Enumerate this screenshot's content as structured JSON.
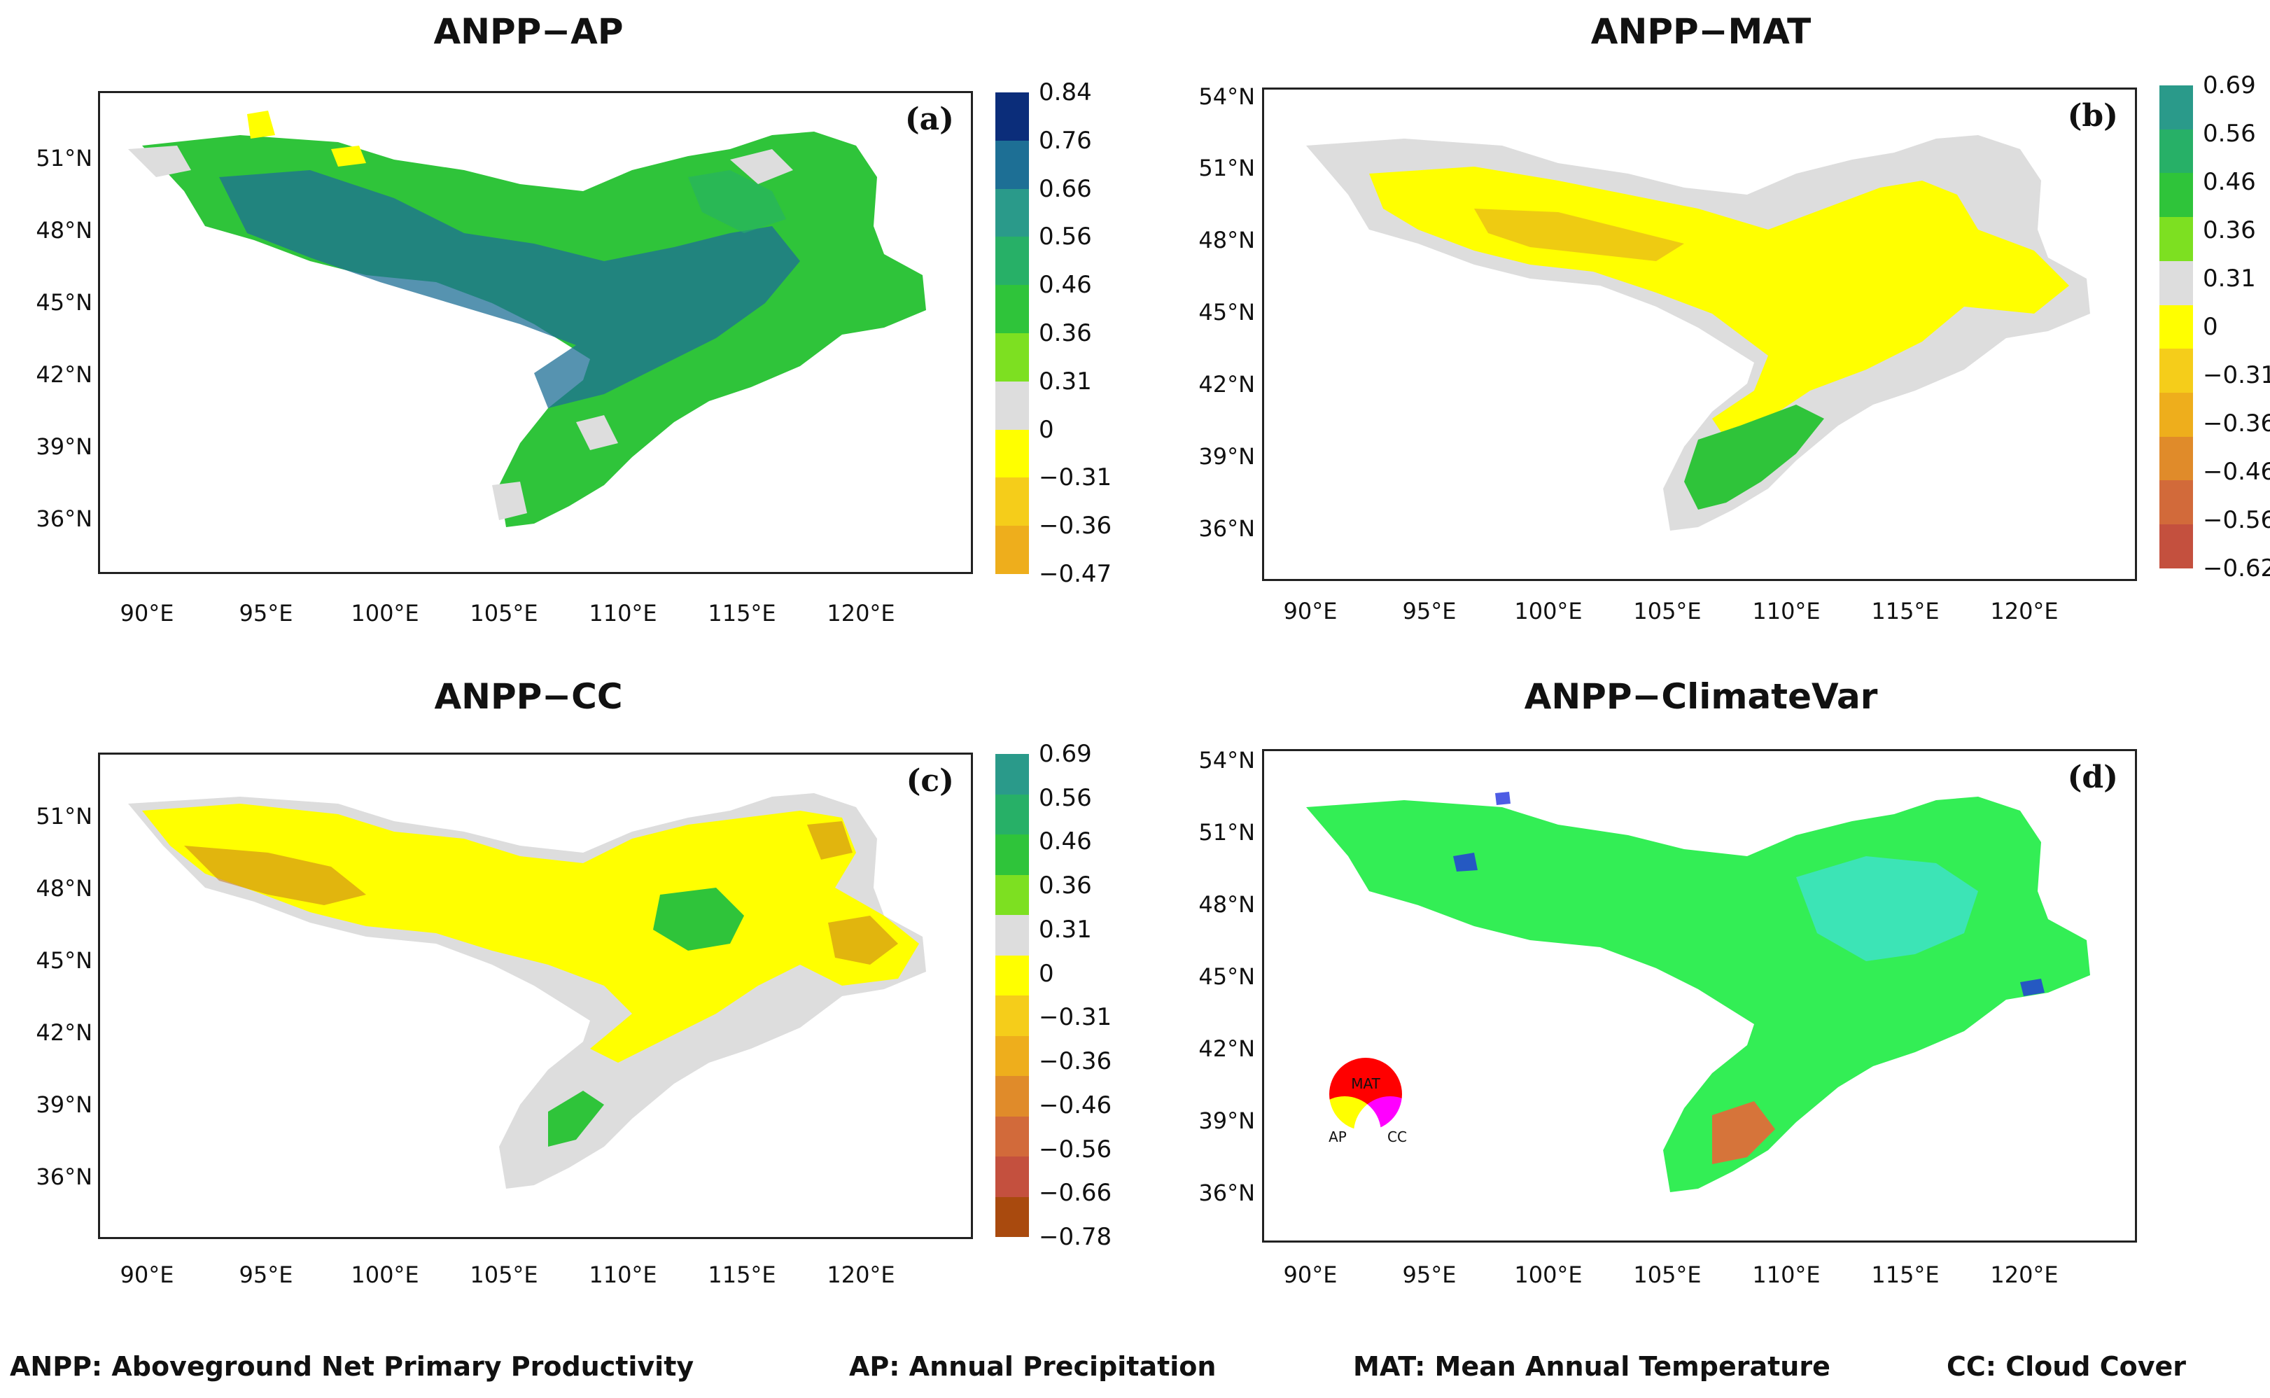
{
  "panels": [
    {
      "title": "ANPP−AP",
      "label": "(a)",
      "lat_ticks": [
        "51°N",
        "48°N",
        "45°N",
        "42°N",
        "39°N",
        "36°N"
      ],
      "lon_ticks": [
        "90°E",
        "95°E",
        "100°E",
        "105°E",
        "110°E",
        "115°E",
        "120°E"
      ],
      "colorbar": {
        "labels": [
          "0.84",
          "0.76",
          "0.66",
          "0.56",
          "0.46",
          "0.36",
          "0.31",
          "0",
          "−0.31",
          "−0.36",
          "−0.47"
        ],
        "colors": [
          "#0b2d7a",
          "#1d6f95",
          "#2a9a8a",
          "#27b067",
          "#2fc43a",
          "#7de021",
          "#dddddd",
          "#ffff00",
          "#f5cd1a",
          "#eeae1c"
        ]
      }
    },
    {
      "title": "ANPP−MAT",
      "label": "(b)",
      "lat_ticks": [
        "54°N",
        "51°N",
        "48°N",
        "45°N",
        "42°N",
        "39°N",
        "36°N"
      ],
      "lon_ticks": [
        "90°E",
        "95°E",
        "100°E",
        "105°E",
        "110°E",
        "115°E",
        "120°E"
      ],
      "colorbar": {
        "labels": [
          "0.69",
          "0.56",
          "0.46",
          "0.36",
          "0.31",
          "0",
          "−0.31",
          "−0.36",
          "−0.46",
          "−0.56",
          "−0.62"
        ],
        "colors": [
          "#2a9a8a",
          "#27b067",
          "#2fc43a",
          "#7de021",
          "#dddddd",
          "#ffff00",
          "#f5cd1a",
          "#eeae1c",
          "#e08b2a",
          "#d26a3a",
          "#c4503e"
        ]
      }
    },
    {
      "title": "ANPP−CC",
      "label": "(c)",
      "lat_ticks": [
        "51°N",
        "48°N",
        "45°N",
        "42°N",
        "39°N",
        "36°N"
      ],
      "lon_ticks": [
        "90°E",
        "95°E",
        "100°E",
        "105°E",
        "110°E",
        "115°E",
        "120°E"
      ],
      "colorbar": {
        "labels": [
          "0.69",
          "0.56",
          "0.46",
          "0.36",
          "0.31",
          "0",
          "−0.31",
          "−0.36",
          "−0.46",
          "−0.56",
          "−0.66",
          "−0.78"
        ],
        "colors": [
          "#2a9a8a",
          "#27b067",
          "#2fc43a",
          "#7de021",
          "#dddddd",
          "#ffff00",
          "#f5cd1a",
          "#eeae1c",
          "#e08b2a",
          "#d26a3a",
          "#c4503e",
          "#a94a0e"
        ]
      }
    },
    {
      "title": "ANPP−ClimateVar",
      "label": "(d)",
      "lat_ticks": [
        "54°N",
        "51°N",
        "48°N",
        "45°N",
        "42°N",
        "39°N",
        "36°N"
      ],
      "lon_ticks": [
        "90°E",
        "95°E",
        "100°E",
        "105°E",
        "110°E",
        "115°E",
        "120°E"
      ],
      "venn": {
        "mat": "MAT",
        "ap": "AP",
        "cc": "CC"
      }
    }
  ],
  "map_colors": {
    "a": {
      "fill": "#2fc43a",
      "accent": "#1d6f95",
      "gray": "#dddddd"
    },
    "b": {
      "fill": "#ffff00",
      "accent": "#e0a020",
      "gray": "#dddddd",
      "green": "#2fc43a"
    },
    "c": {
      "fill": "#ffff00",
      "accent": "#c8781a",
      "gray": "#dddddd",
      "green": "#2fc43a"
    },
    "d": {
      "fill": "#33ee55",
      "accent": "#40e0e0",
      "red": "#ff5533",
      "blue": "#2233dd"
    }
  },
  "footer": {
    "anpp": "ANPP: Aboveground Net Primary Productivity",
    "ap": "AP: Annual Precipitation",
    "mat": "MAT: Mean Annual Temperature",
    "cc": "CC: Cloud Cover"
  }
}
